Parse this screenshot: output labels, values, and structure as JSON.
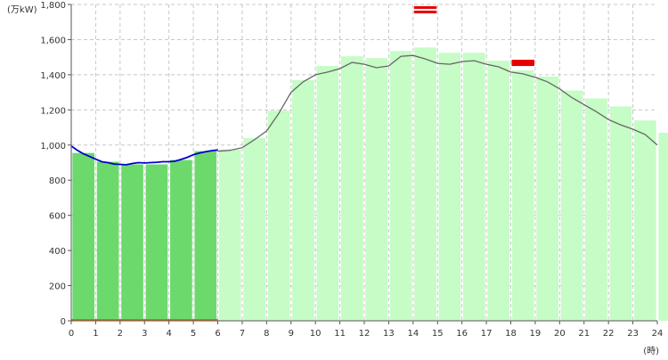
{
  "chart_data": {
    "type": "bar",
    "y_unit_label": "(万kW)",
    "x_unit_label": "(時)",
    "yticks": [
      "0",
      "200",
      "400",
      "600",
      "800",
      "1,000",
      "1,200",
      "1,400",
      "1,600",
      "1,800"
    ],
    "xticks": [
      "0",
      "1",
      "2",
      "3",
      "4",
      "5",
      "6",
      "7",
      "8",
      "9",
      "10",
      "11",
      "12",
      "13",
      "14",
      "15",
      "16",
      "17",
      "18",
      "19",
      "20",
      "21",
      "22",
      "23",
      "24"
    ],
    "ylim": [
      0,
      1800
    ],
    "xlim": [
      0,
      24
    ],
    "grid": true,
    "actual_hourly_demand": [
      955,
      905,
      890,
      890,
      915,
      965
    ],
    "forecast_hourly_demand": [
      975,
      1040,
      1195,
      1370,
      1450,
      1505,
      1495,
      1535,
      1555,
      1525,
      1525,
      1480,
      1425,
      1390,
      1310,
      1265,
      1220,
      1140,
      1070
    ],
    "forecast_start_hour": 6,
    "forecast_curve": [
      [
        6,
        965
      ],
      [
        6.5,
        970
      ],
      [
        7,
        985
      ],
      [
        7.5,
        1030
      ],
      [
        8,
        1080
      ],
      [
        8.5,
        1180
      ],
      [
        9,
        1300
      ],
      [
        9.5,
        1360
      ],
      [
        10,
        1400
      ],
      [
        10.5,
        1415
      ],
      [
        11,
        1435
      ],
      [
        11.5,
        1470
      ],
      [
        12,
        1460
      ],
      [
        12.5,
        1440
      ],
      [
        13,
        1450
      ],
      [
        13.5,
        1505
      ],
      [
        14,
        1510
      ],
      [
        14.5,
        1490
      ],
      [
        15,
        1465
      ],
      [
        15.5,
        1460
      ],
      [
        16,
        1475
      ],
      [
        16.5,
        1480
      ],
      [
        17,
        1460
      ],
      [
        17.5,
        1445
      ],
      [
        18,
        1415
      ],
      [
        18.5,
        1405
      ],
      [
        19,
        1385
      ],
      [
        19.5,
        1360
      ],
      [
        20,
        1320
      ],
      [
        20.5,
        1270
      ],
      [
        21,
        1230
      ],
      [
        21.5,
        1190
      ],
      [
        22,
        1145
      ],
      [
        22.5,
        1115
      ],
      [
        23,
        1090
      ],
      [
        23.5,
        1060
      ],
      [
        24,
        1000
      ]
    ],
    "actual_curve": [
      [
        0,
        995
      ],
      [
        0.25,
        970
      ],
      [
        0.5,
        950
      ],
      [
        0.75,
        935
      ],
      [
        1,
        920
      ],
      [
        1.25,
        905
      ],
      [
        1.5,
        900
      ],
      [
        1.75,
        892
      ],
      [
        2,
        890
      ],
      [
        2.25,
        888
      ],
      [
        2.5,
        895
      ],
      [
        2.75,
        900
      ],
      [
        3,
        898
      ],
      [
        3.25,
        900
      ],
      [
        3.5,
        902
      ],
      [
        3.75,
        905
      ],
      [
        4,
        905
      ],
      [
        4.25,
        908
      ],
      [
        4.5,
        918
      ],
      [
        4.75,
        930
      ],
      [
        5,
        945
      ],
      [
        5.25,
        955
      ],
      [
        5.5,
        962
      ],
      [
        5.75,
        968
      ],
      [
        6,
        972
      ]
    ],
    "peak_markers": [
      {
        "x_start": 14,
        "x_end": 15,
        "value": 1780,
        "kind": "double"
      },
      {
        "x_start": 18,
        "x_end": 19,
        "value": 1465,
        "kind": "single"
      }
    ],
    "colors": {
      "actual_bar": "#6cd96c",
      "forecast_bar": "#c6fcc6",
      "forecast_line": "#666666",
      "actual_line": "#0000cc",
      "peak_marker": "#e60000",
      "base_line": "#e07000"
    }
  }
}
